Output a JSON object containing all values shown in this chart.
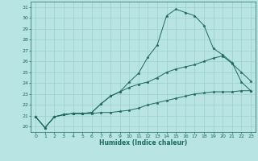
{
  "xlabel": "Humidex (Indice chaleur)",
  "xlim": [
    -0.5,
    23.5
  ],
  "ylim": [
    19.5,
    31.5
  ],
  "xticks": [
    0,
    1,
    2,
    3,
    4,
    5,
    6,
    7,
    8,
    9,
    10,
    11,
    12,
    13,
    14,
    15,
    16,
    17,
    18,
    19,
    20,
    21,
    22,
    23
  ],
  "yticks": [
    20,
    21,
    22,
    23,
    24,
    25,
    26,
    27,
    28,
    29,
    30,
    31
  ],
  "bg_color": "#b8e4e4",
  "grid_color": "#9ecece",
  "line_color": "#1a6b5a",
  "lines": [
    {
      "x": [
        0,
        1,
        2,
        3,
        4,
        5,
        6,
        7,
        8,
        9,
        10,
        11,
        12,
        13,
        14,
        15,
        16,
        17,
        18,
        19,
        20,
        21,
        22,
        23
      ],
      "y": [
        20.9,
        19.9,
        20.9,
        21.1,
        21.2,
        21.2,
        21.2,
        21.3,
        21.3,
        21.4,
        21.5,
        21.7,
        22.0,
        22.2,
        22.4,
        22.6,
        22.8,
        23.0,
        23.1,
        23.2,
        23.2,
        23.2,
        23.3,
        23.3
      ]
    },
    {
      "x": [
        0,
        1,
        2,
        3,
        4,
        5,
        6,
        7,
        8,
        9,
        10,
        11,
        12,
        13,
        14,
        15,
        16,
        17,
        18,
        19,
        20,
        21,
        22,
        23
      ],
      "y": [
        20.9,
        19.9,
        20.9,
        21.1,
        21.2,
        21.2,
        21.3,
        22.1,
        22.8,
        23.2,
        23.6,
        23.9,
        24.1,
        24.5,
        25.0,
        25.3,
        25.5,
        25.7,
        26.0,
        26.3,
        26.5,
        25.8,
        25.0,
        24.2
      ]
    },
    {
      "x": [
        0,
        1,
        2,
        3,
        4,
        5,
        6,
        7,
        8,
        9,
        10,
        11,
        12,
        13,
        14,
        15,
        16,
        17,
        18,
        19,
        20,
        21,
        22,
        23
      ],
      "y": [
        20.9,
        19.9,
        20.9,
        21.1,
        21.2,
        21.2,
        21.3,
        22.1,
        22.8,
        23.2,
        24.1,
        24.9,
        26.4,
        27.5,
        30.2,
        30.8,
        30.5,
        30.2,
        29.3,
        27.2,
        26.6,
        25.9,
        24.1,
        23.3
      ]
    }
  ]
}
